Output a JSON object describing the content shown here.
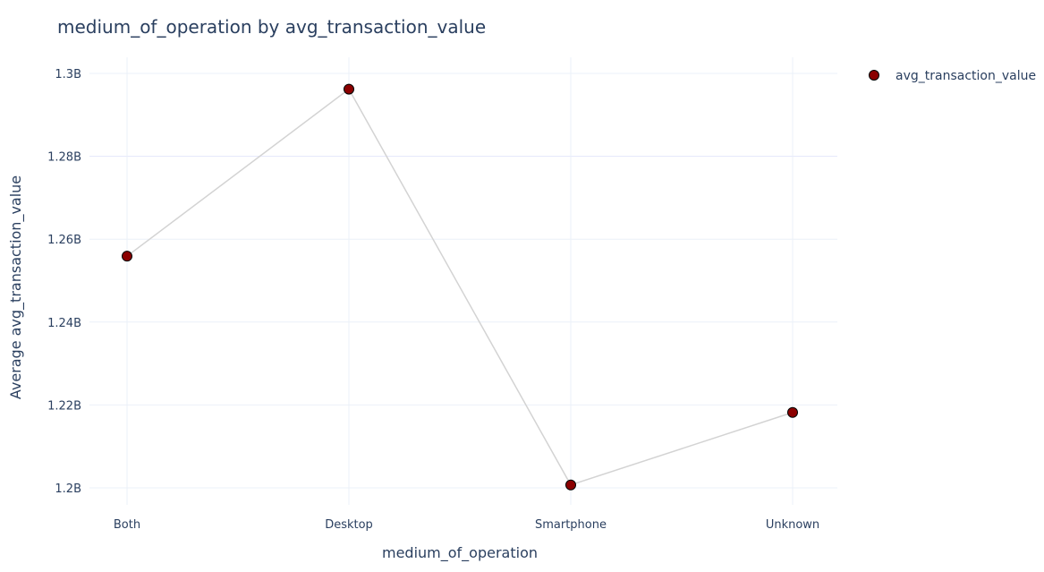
{
  "chart_data": {
    "type": "line",
    "title": "medium_of_operation by avg_transaction_value",
    "xlabel": "medium_of_operation",
    "ylabel": "Average avg_transaction_value",
    "categories": [
      "Both",
      "Desktop",
      "Smartphone",
      "Unknown"
    ],
    "series": [
      {
        "name": "avg_transaction_value",
        "values": [
          1255900000,
          1296200000,
          1200700000,
          1218200000
        ],
        "marker_color": "#8b0000",
        "line_color": "#d3d3d3"
      }
    ],
    "ylim": [
      1200000000.0,
      1300000000.0
    ],
    "yticks": [
      {
        "value": 1200000000.0,
        "label": "1.2B"
      },
      {
        "value": 1220000000.0,
        "label": "1.22B"
      },
      {
        "value": 1240000000.0,
        "label": "1.24B"
      },
      {
        "value": 1260000000.0,
        "label": "1.26B"
      },
      {
        "value": 1280000000.0,
        "label": "1.28B"
      },
      {
        "value": 1300000000.0,
        "label": "1.3B"
      }
    ],
    "grid": true,
    "legend_position": "top-right",
    "colors": {
      "text": "#2a3f5f",
      "grid": "#ebf0f8",
      "highlight_grid": "#e3e6fb"
    }
  }
}
